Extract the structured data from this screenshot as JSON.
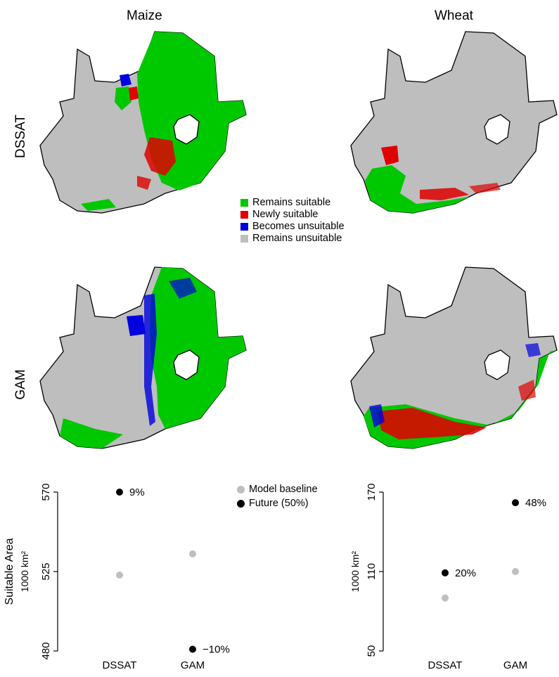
{
  "figure": {
    "col_titles": [
      "Maize",
      "Wheat"
    ],
    "row_labels": [
      "DSSAT",
      "GAM"
    ]
  },
  "maps_legend": {
    "items": [
      {
        "label": "Remains suitable",
        "color": "#00c800"
      },
      {
        "label": "Newly suitable",
        "color": "#e00000"
      },
      {
        "label": "Becomes unsuitable",
        "color": "#0000e0"
      },
      {
        "label": "Remains unsuitable",
        "color": "#bebebe"
      }
    ]
  },
  "points_legend": {
    "items": [
      {
        "label": "Model baseline",
        "color": "#bebebe"
      },
      {
        "label": "Future (50%)",
        "color": "#000000"
      }
    ]
  },
  "chart_data": [
    {
      "type": "scatter",
      "crop": "Maize",
      "categories": [
        "DSSAT",
        "GAM"
      ],
      "ylabel": "Suitable Area",
      "ylabel2": "1000 km²",
      "yticks": [
        480,
        525,
        570
      ],
      "ylim": [
        480,
        570
      ],
      "series": [
        {
          "name": "Model baseline",
          "color": "#bebebe",
          "values": [
            523,
            535
          ]
        },
        {
          "name": "Future (50%)",
          "color": "#000000",
          "values": [
            570,
            481
          ]
        }
      ],
      "annotations": [
        "9%",
        "−10%"
      ]
    },
    {
      "type": "scatter",
      "crop": "Wheat",
      "categories": [
        "DSSAT",
        "GAM"
      ],
      "ylabel2": "1000 km²",
      "yticks": [
        50,
        110,
        170
      ],
      "ylim": [
        50,
        170
      ],
      "series": [
        {
          "name": "Model baseline",
          "color": "#bebebe",
          "values": [
            90,
            110
          ]
        },
        {
          "name": "Future (50%)",
          "color": "#000000",
          "values": [
            109,
            162
          ]
        }
      ],
      "annotations": [
        "20%",
        "48%"
      ]
    }
  ]
}
